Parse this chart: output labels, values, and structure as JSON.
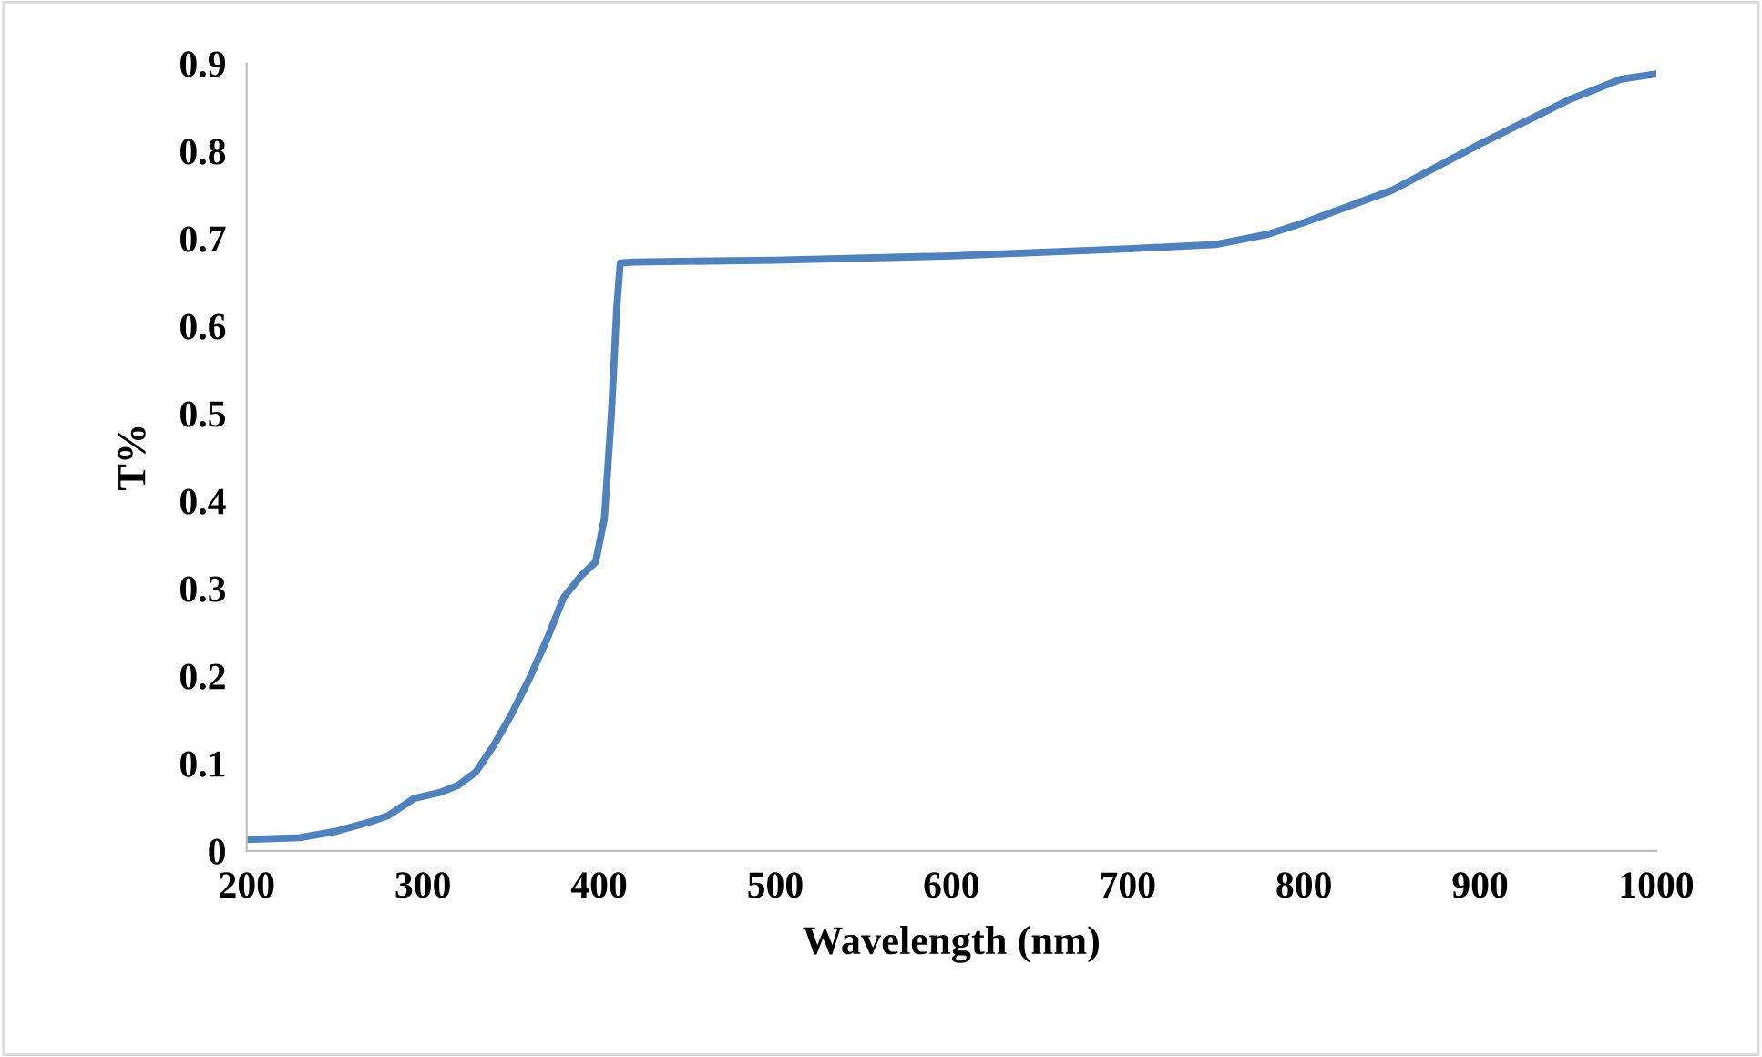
{
  "chart_data": {
    "type": "line",
    "xlabel": "Wavelength (nm)",
    "ylabel": "T%",
    "series": [
      {
        "color": "#4f81bd",
        "x": [
          200,
          230,
          250,
          270,
          280,
          295,
          310,
          320,
          330,
          340,
          350,
          360,
          370,
          380,
          390,
          398,
          403,
          407,
          410,
          412,
          420,
          500,
          600,
          700,
          750,
          780,
          800,
          850,
          900,
          950,
          980,
          1000
        ],
        "values": [
          0.013,
          0.015,
          0.022,
          0.033,
          0.04,
          0.06,
          0.067,
          0.075,
          0.09,
          0.12,
          0.155,
          0.195,
          0.24,
          0.29,
          0.315,
          0.33,
          0.38,
          0.5,
          0.62,
          0.672,
          0.673,
          0.675,
          0.68,
          0.688,
          0.693,
          0.705,
          0.718,
          0.755,
          0.808,
          0.858,
          0.882,
          0.888
        ]
      }
    ],
    "xlim": [
      200,
      1000
    ],
    "xticks": [
      200,
      300,
      400,
      500,
      600,
      700,
      800,
      900,
      1000
    ],
    "ylim": [
      0,
      0.9
    ],
    "yticks": [
      {
        "value": 0,
        "label": "0"
      },
      0.1,
      0.2,
      0.3,
      0.4,
      0.5,
      0.6,
      0.7,
      0.8,
      0.9
    ],
    "grid": false
  }
}
